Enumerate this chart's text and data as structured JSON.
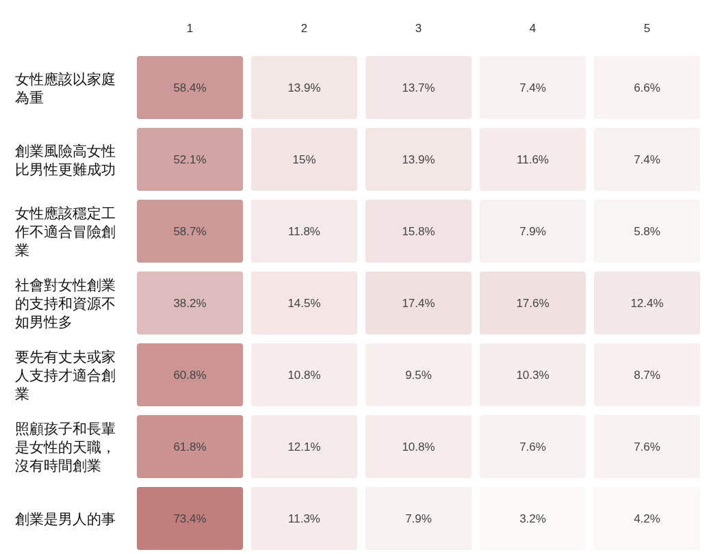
{
  "chart_data": {
    "type": "heatmap",
    "categories": [
      "1",
      "2",
      "3",
      "4",
      "5"
    ],
    "y_categories": [
      "女性應該以家庭為重",
      "創業風險高女性比男性更難成功",
      "女性應該穩定工作不適合冒險創業",
      "社會對女性創業的支持和資源不如男性多",
      "要先有丈夫或家人支持才適合創業",
      "照顧孩子和長輩是女性的天職，沒有時間創業",
      "創業是男人的事"
    ],
    "cells": [
      [
        58.4,
        13.9,
        13.7,
        7.4,
        6.6
      ],
      [
        52.1,
        15,
        13.9,
        11.6,
        7.4
      ],
      [
        58.7,
        11.8,
        15.8,
        7.9,
        5.8
      ],
      [
        38.2,
        14.5,
        17.4,
        17.6,
        12.4
      ],
      [
        60.8,
        10.8,
        9.5,
        10.3,
        8.7
      ],
      [
        61.8,
        12.1,
        10.8,
        7.6,
        7.6
      ],
      [
        73.4,
        11.3,
        7.9,
        3.2,
        4.2
      ]
    ],
    "cell_labels": [
      [
        "58.4%",
        "13.9%",
        "13.7%",
        "7.4%",
        "6.6%"
      ],
      [
        "52.1%",
        "15%",
        "13.9%",
        "11.6%",
        "7.4%"
      ],
      [
        "58.7%",
        "11.8%",
        "15.8%",
        "7.9%",
        "5.8%"
      ],
      [
        "38.2%",
        "14.5%",
        "17.4%",
        "17.6%",
        "12.4%"
      ],
      [
        "60.8%",
        "10.8%",
        "9.5%",
        "10.3%",
        "8.7%"
      ],
      [
        "61.8%",
        "12.1%",
        "10.8%",
        "7.6%",
        "7.6%"
      ],
      [
        "73.4%",
        "11.3%",
        "7.9%",
        "3.2%",
        "4.2%"
      ]
    ],
    "color": "#c07f7d"
  }
}
